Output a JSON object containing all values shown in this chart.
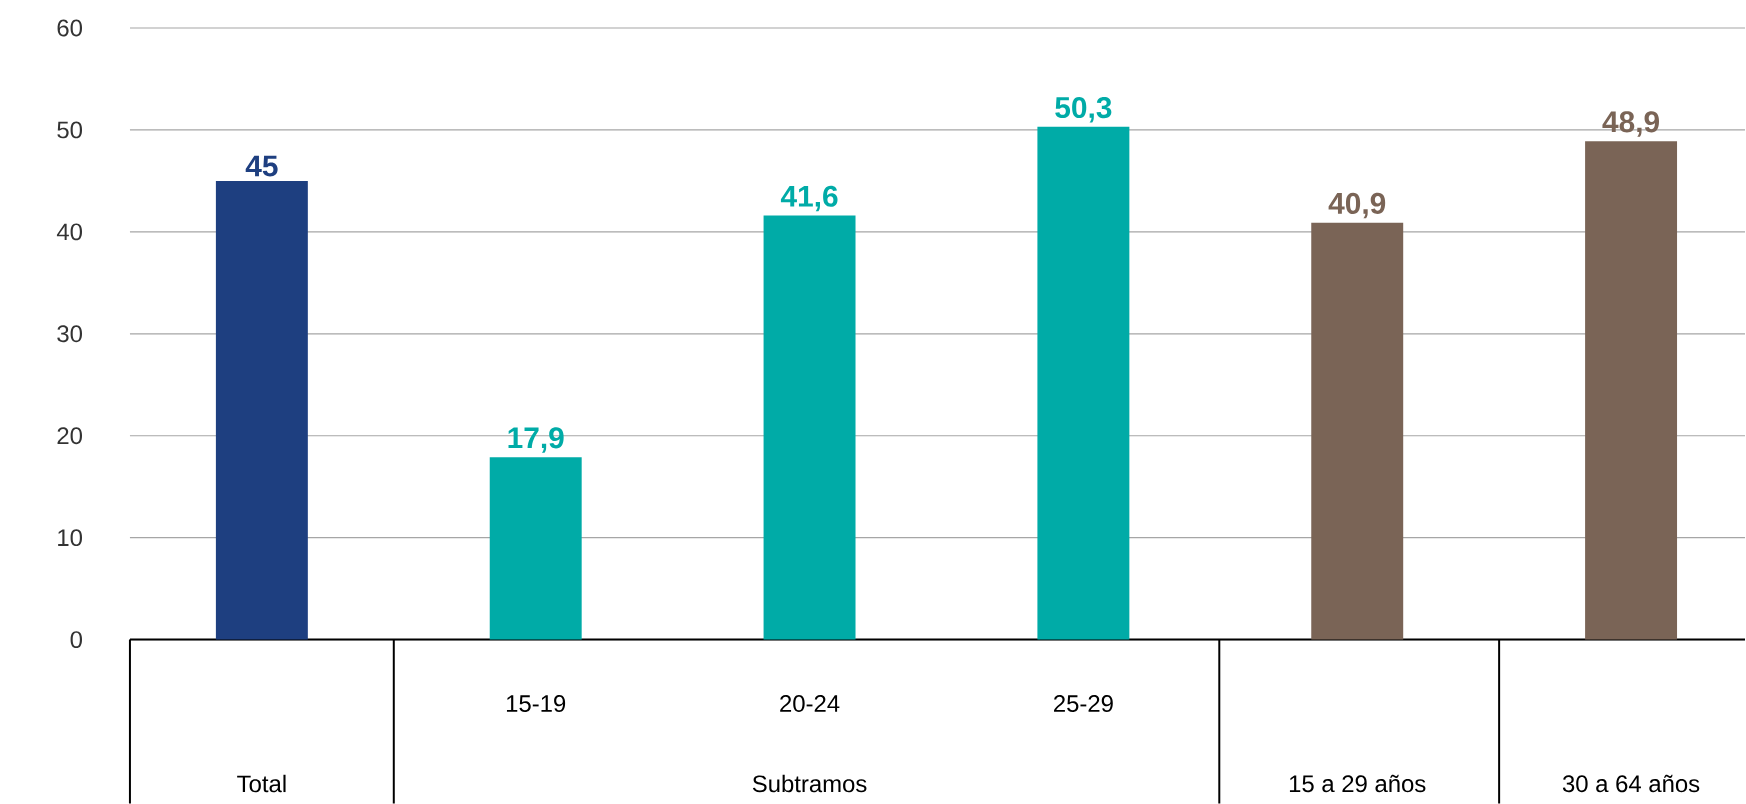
{
  "chart_data": {
    "type": "bar",
    "categories": [
      "Total",
      "15-19",
      "20-24",
      "25-29",
      "15 a 29 años",
      "30 a 64 años"
    ],
    "values": [
      45,
      17.9,
      41.6,
      50.3,
      40.9,
      48.9
    ],
    "value_labels": [
      "45",
      "17,9",
      "41,6",
      "50,3",
      "40,9",
      "48,9"
    ],
    "colors": [
      "#1e3f80",
      "#00aba7",
      "#00aba7",
      "#00aba7",
      "#7a6456",
      "#7a6456"
    ],
    "ylim": [
      0,
      60
    ],
    "yticks": [
      0,
      10,
      20,
      30,
      40,
      50,
      60
    ],
    "grid": "y",
    "annotations": [
      "Subtramos"
    ]
  }
}
